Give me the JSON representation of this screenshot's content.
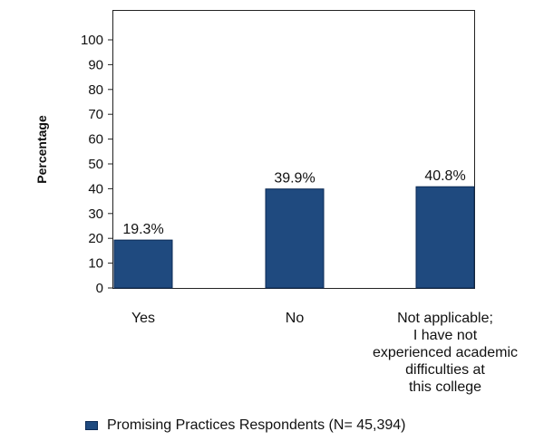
{
  "chart_data": {
    "type": "bar",
    "title": "",
    "xlabel": "",
    "ylabel": "Percentage",
    "categories": [
      [
        "Yes"
      ],
      [
        "No"
      ],
      [
        "Not applicable;",
        "I have not",
        "experienced academic",
        "difficulties at",
        "this college"
      ]
    ],
    "series": [
      {
        "name": "Promising Practices Respondents (N= 45,394)",
        "values": [
          19.3,
          39.9,
          40.8
        ],
        "labels": [
          "19.3%",
          "39.9%",
          "40.8%"
        ],
        "color": "#1f4a7f"
      }
    ],
    "ylim": [
      0,
      100
    ],
    "yticks": [
      0,
      10,
      20,
      30,
      40,
      50,
      60,
      70,
      80,
      90,
      100
    ],
    "grid": false,
    "legend_position": "bottom"
  }
}
